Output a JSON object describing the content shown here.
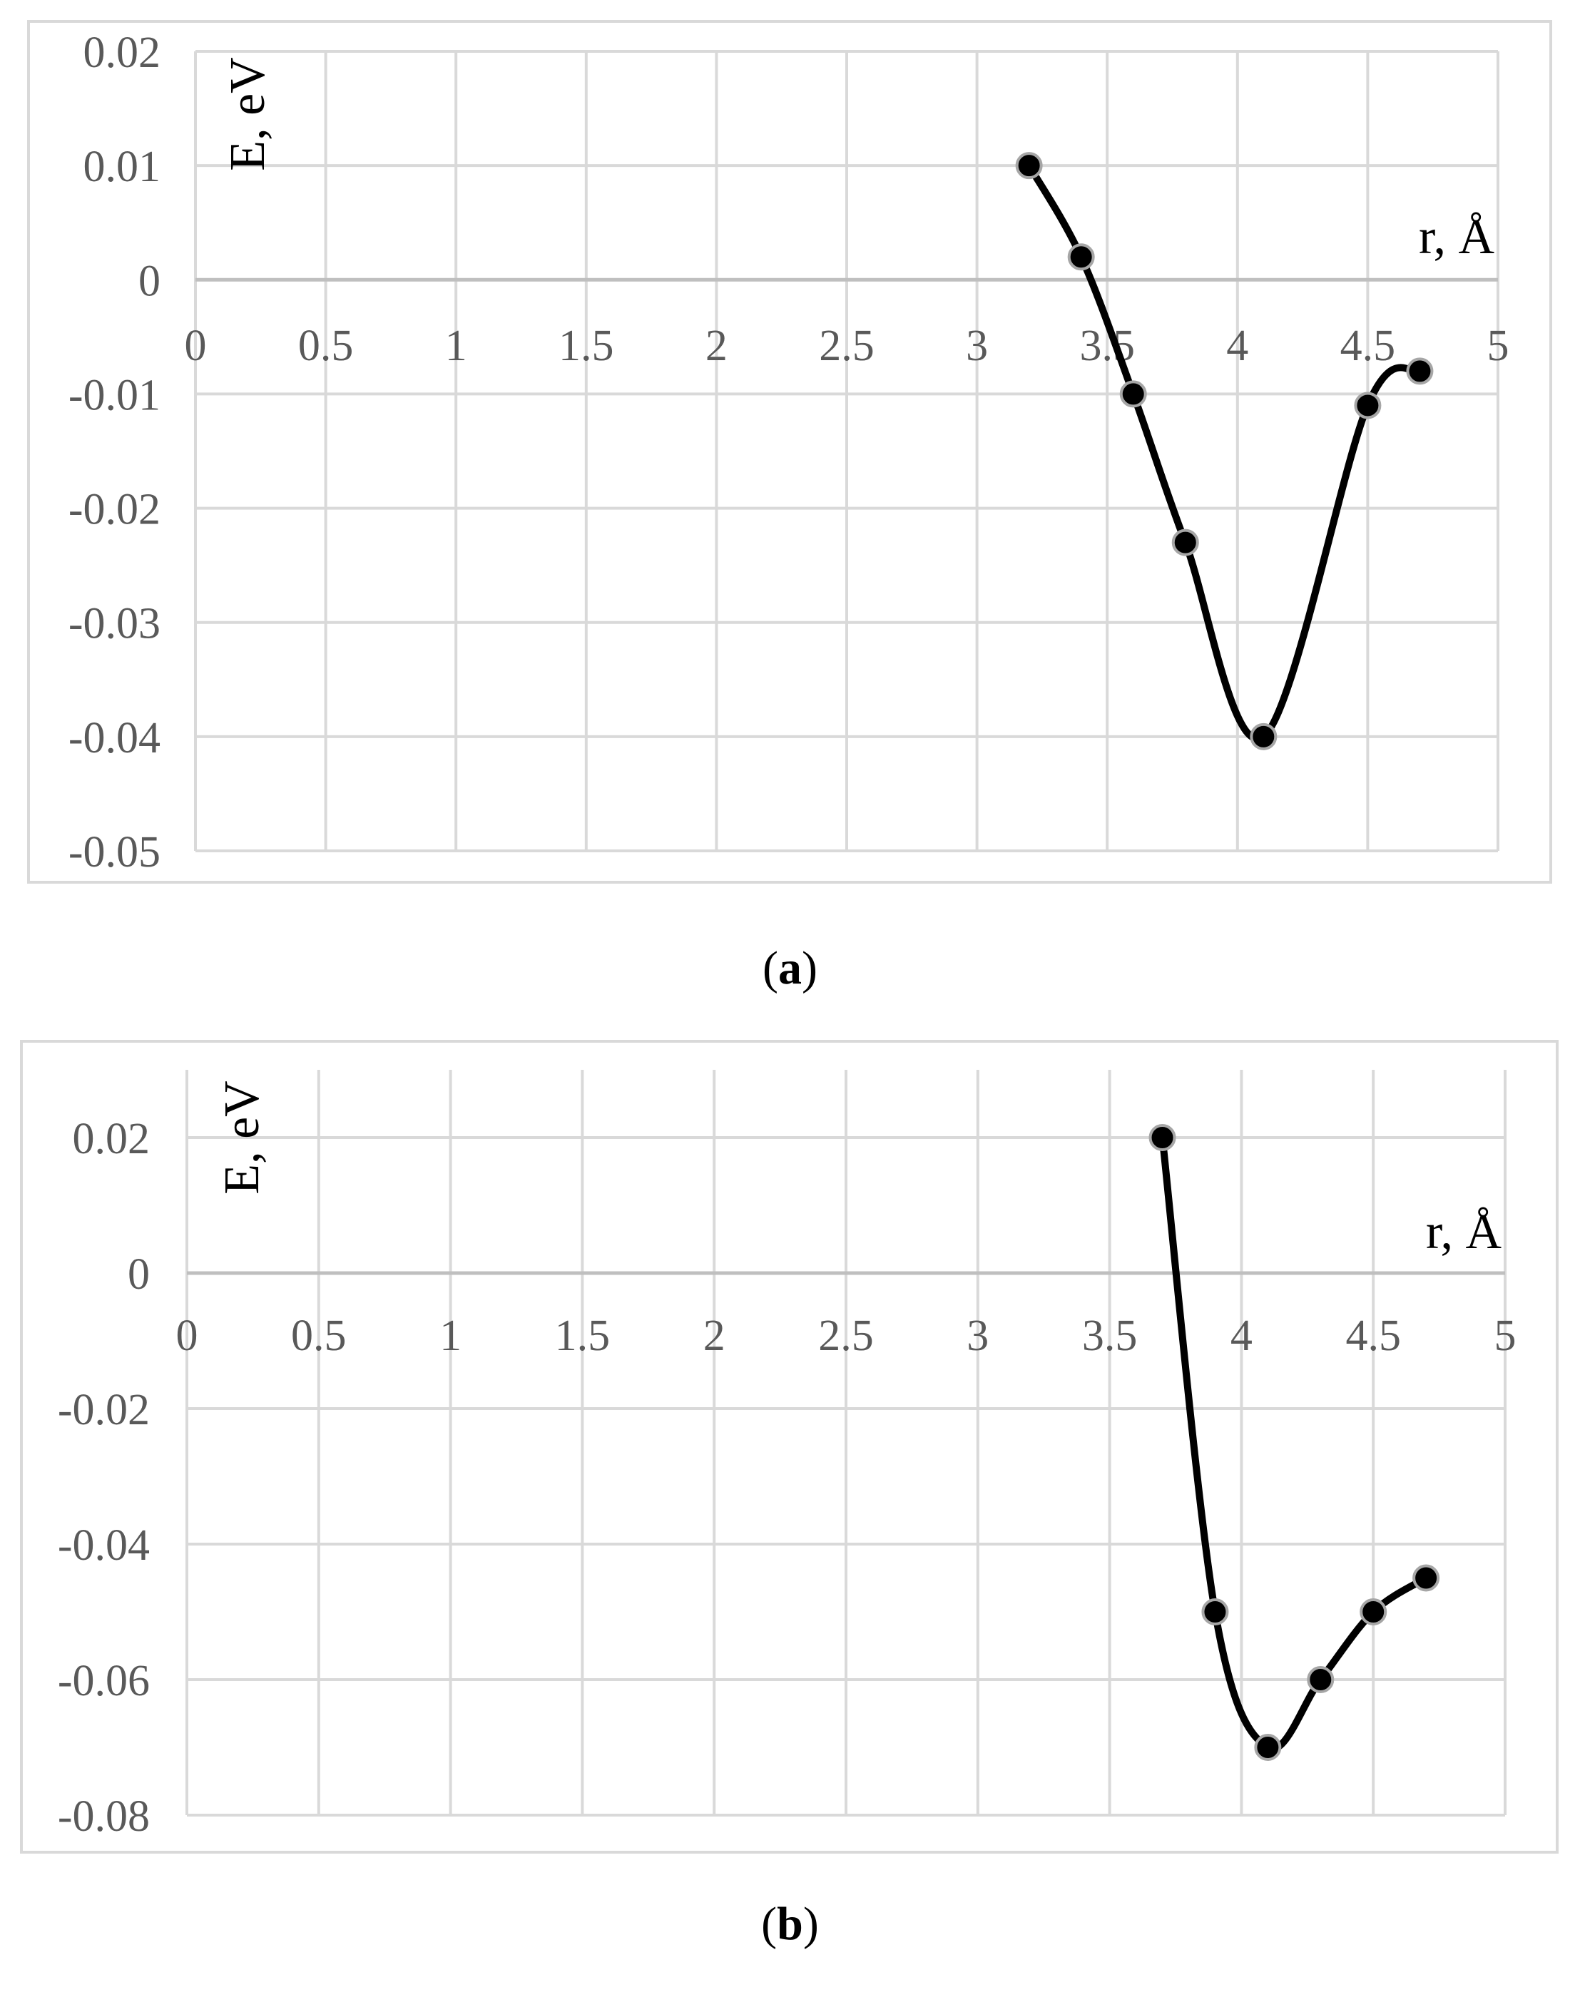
{
  "chart_data": [
    {
      "type": "line",
      "panel": "a",
      "xlabel": "r, Å",
      "ylabel": "E, eV",
      "xlim": [
        0,
        5
      ],
      "ylim": [
        -0.05,
        0.02
      ],
      "x_ticks": [
        "0",
        "0.5",
        "1",
        "1.5",
        "2",
        "2.5",
        "3",
        "3.5",
        "4",
        "4.5",
        "5"
      ],
      "y_ticks": [
        "0.02",
        "0.01",
        "0",
        "-0.01",
        "-0.02",
        "-0.03",
        "-0.04",
        "-0.05"
      ],
      "grid": true,
      "smooth": true,
      "series": [
        {
          "x": [
            3.2,
            3.4,
            3.6,
            3.8,
            4.1,
            4.5,
            4.7
          ],
          "y": [
            0.01,
            0.002,
            -0.01,
            -0.023,
            -0.04,
            -0.011,
            -0.008
          ]
        }
      ]
    },
    {
      "type": "line",
      "panel": "b",
      "xlabel": "r, Å",
      "ylabel": "E, eV",
      "xlim": [
        0,
        5
      ],
      "ylim": [
        -0.08,
        0.03
      ],
      "x_ticks": [
        "0",
        "0.5",
        "1",
        "1.5",
        "2",
        "2.5",
        "3",
        "3.5",
        "4",
        "4.5",
        "5"
      ],
      "y_ticks": [
        "0.02",
        "0",
        "-0.02",
        "-0.04",
        "-0.06",
        "-0.08"
      ],
      "grid": true,
      "smooth": true,
      "series": [
        {
          "x": [
            3.7,
            3.9,
            4.1,
            4.3,
            4.5,
            4.7
          ],
          "y": [
            0.02,
            -0.05,
            -0.07,
            -0.06,
            -0.05,
            -0.045
          ]
        }
      ]
    }
  ],
  "captions": {
    "a": {
      "open": "(",
      "letter": "a",
      "close": ")"
    },
    "b": {
      "open": "(",
      "letter": "b",
      "close": ")"
    }
  },
  "colors": {
    "grid": "#d9d9d9",
    "axis_zero": "#bfbfbf",
    "line": "#000000",
    "marker_fill": "#000000",
    "marker_stroke": "#a6a6a6",
    "tick_text": "#595959"
  }
}
